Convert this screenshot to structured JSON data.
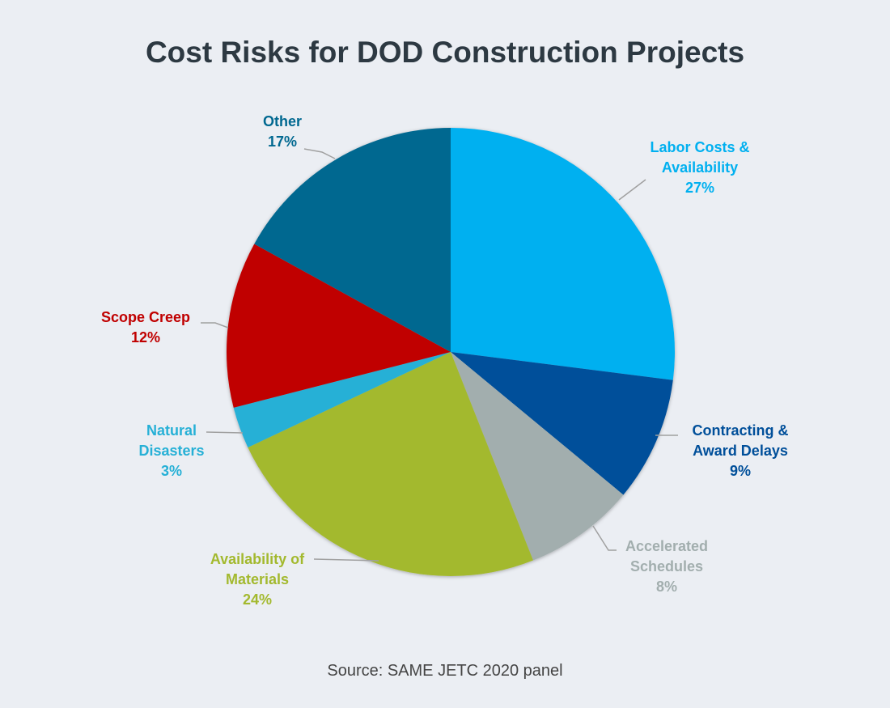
{
  "chart_data": {
    "type": "pie",
    "title": "Cost Risks for DOD Construction Projects",
    "source": "Source: SAME JETC 2020 panel",
    "start": "top",
    "direction": "clockwise",
    "slices": [
      {
        "label": [
          "Labor Costs &",
          "Availability",
          "27%"
        ],
        "name": "Labor Costs & Availability",
        "value": 27,
        "color": "#00b0f0"
      },
      {
        "label": [
          "Contracting &",
          "Award Delays",
          "9%"
        ],
        "name": "Contracting & Award Delays",
        "value": 9,
        "color": "#004f9a"
      },
      {
        "label": [
          "Accelerated",
          "Schedules",
          "8%"
        ],
        "name": "Accelerated Schedules",
        "value": 8,
        "color": "#a2aeae"
      },
      {
        "label": [
          "Availability of",
          "Materials",
          "24%"
        ],
        "name": "Availability of Materials",
        "value": 24,
        "color": "#a3b92e"
      },
      {
        "label": [
          "Natural",
          "Disasters",
          "3%"
        ],
        "name": "Natural Disasters",
        "value": 3,
        "color": "#26b0d6"
      },
      {
        "label": [
          "Scope Creep",
          "12%"
        ],
        "name": "Scope Creep",
        "value": 12,
        "color": "#c00000"
      },
      {
        "label": [
          "Other",
          "17%"
        ],
        "name": "Other",
        "value": 17,
        "color": "#006890"
      }
    ]
  }
}
